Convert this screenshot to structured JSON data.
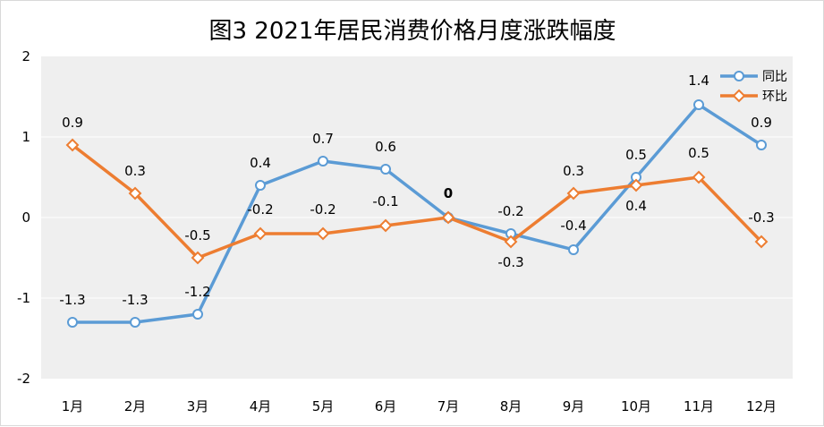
{
  "chart_data": {
    "type": "line",
    "title": "图3 2021年居民消费价格月度涨跌幅度",
    "categories": [
      "1月",
      "2月",
      "3月",
      "4月",
      "5月",
      "6月",
      "7月",
      "8月",
      "9月",
      "10月",
      "11月",
      "12月"
    ],
    "ylim": [
      -2,
      2
    ],
    "yticks": [
      "2",
      "1",
      "0",
      "-1",
      "-2"
    ],
    "grid": true,
    "legend_position": "top-right",
    "series": [
      {
        "name": "同比",
        "color": "#5b9bd5",
        "marker": "circle",
        "values": [
          -1.3,
          -1.3,
          -1.2,
          0.4,
          0.7,
          0.6,
          0,
          -0.2,
          -0.4,
          0.5,
          1.4,
          0.9
        ],
        "labels": [
          "-1.3",
          "-1.3",
          "-1.2",
          "0.4",
          "0.7",
          "0.6",
          "0",
          "-0.2",
          "-0.4",
          "0.5",
          "1.4",
          "0.9"
        ]
      },
      {
        "name": "环比",
        "color": "#ed7d31",
        "marker": "diamond",
        "values": [
          0.9,
          0.3,
          -0.5,
          -0.2,
          -0.2,
          -0.1,
          0,
          -0.3,
          0.3,
          0.4,
          0.5,
          -0.3
        ],
        "labels": [
          "0.9",
          "0.3",
          "-0.5",
          "-0.2",
          "-0.2",
          "-0.1",
          "",
          "-0.3",
          "0.3",
          "0.4",
          "0.5",
          "-0.3"
        ]
      }
    ]
  }
}
